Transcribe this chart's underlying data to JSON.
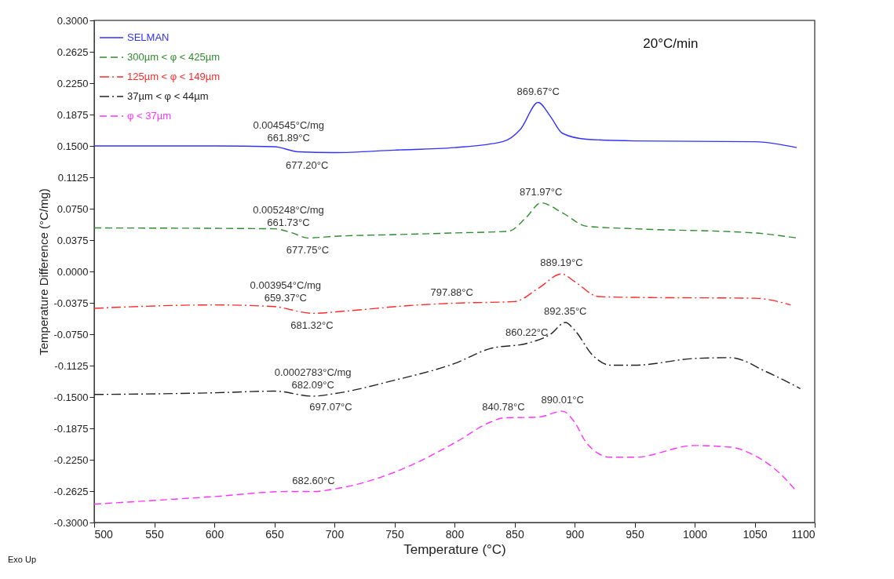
{
  "chart_data": {
    "type": "line",
    "xlabel": "Temperature (°C)",
    "ylabel": "Temperature Difference (°C/mg)",
    "xlim": [
      500,
      1100
    ],
    "ylim": [
      -0.3,
      0.3
    ],
    "xticks": [
      500,
      550,
      600,
      650,
      700,
      750,
      800,
      850,
      900,
      950,
      1000,
      1050,
      1100
    ],
    "yticks": [
      {
        "value": -0.3,
        "label": "-0.3000"
      },
      {
        "value": -0.2625,
        "label": "-0.2625"
      },
      {
        "value": -0.225,
        "label": "-0.2250"
      },
      {
        "value": -0.1875,
        "label": "-0.1875"
      },
      {
        "value": -0.15,
        "label": "-0.1500"
      },
      {
        "value": -0.1125,
        "label": "-0.1125"
      },
      {
        "value": -0.075,
        "label": "-0.0750"
      },
      {
        "value": -0.0375,
        "label": "-0.0375"
      },
      {
        "value": 0,
        "label": "0.0000"
      },
      {
        "value": 0.0375,
        "label": "0.0375"
      },
      {
        "value": 0.075,
        "label": "0.0750"
      },
      {
        "value": 0.1125,
        "label": "0.1125"
      },
      {
        "value": 0.15,
        "label": "0.1500"
      },
      {
        "value": 0.1875,
        "label": "0.1875"
      },
      {
        "value": 0.225,
        "label": "0.2250"
      },
      {
        "value": 0.2625,
        "label": "0.2625"
      },
      {
        "value": 0.3,
        "label": "0.3000"
      }
    ],
    "grid": false,
    "legend": "top left",
    "series": [
      {
        "name": "SELMAN",
        "color": "#3333ff",
        "line_style": "solid",
        "x": [
          500,
          600,
          650,
          670,
          700,
          750,
          800,
          840,
          855,
          869.67,
          880,
          890,
          910,
          950,
          1050,
          1070,
          1085
        ],
        "values": [
          0.15,
          0.15,
          0.149,
          0.143,
          0.142,
          0.145,
          0.148,
          0.155,
          0.17,
          0.202,
          0.185,
          0.165,
          0.158,
          0.156,
          0.155,
          0.152,
          0.148
        ]
      },
      {
        "name": "300µm < φ < 425µm",
        "color": "#2e8b2e",
        "line_style": "dashed",
        "x": [
          500,
          650,
          665,
          677.75,
          700,
          750,
          800,
          845,
          860,
          871.97,
          890,
          910,
          950,
          1050,
          1085
        ],
        "values": [
          0.052,
          0.051,
          0.046,
          0.04,
          0.042,
          0.044,
          0.046,
          0.048,
          0.065,
          0.082,
          0.07,
          0.054,
          0.051,
          0.046,
          0.04
        ]
      },
      {
        "name": "125µm < φ < 149µm",
        "color": "#ff2a2a",
        "line_style": "dashdot",
        "x": [
          500,
          600,
          650,
          681.32,
          712,
          760,
          797.88,
          850,
          870,
          889.19,
          900,
          920,
          950,
          1050,
          1080
        ],
        "values": [
          -0.044,
          -0.04,
          -0.042,
          -0.05,
          -0.047,
          -0.041,
          -0.038,
          -0.036,
          -0.02,
          -0.003,
          -0.012,
          -0.03,
          -0.031,
          -0.032,
          -0.04
        ]
      },
      {
        "name": "37µm < φ < 44µm",
        "color": "#222222",
        "line_style": "dashdot",
        "x": [
          500,
          600,
          650,
          682.09,
          700,
          750,
          800,
          830,
          860.22,
          880,
          892.35,
          900,
          915,
          930,
          950,
          1000,
          1030,
          1060,
          1088
        ],
        "values": [
          -0.147,
          -0.145,
          -0.143,
          -0.149,
          -0.146,
          -0.13,
          -0.11,
          -0.092,
          -0.086,
          -0.075,
          -0.061,
          -0.07,
          -0.1,
          -0.112,
          -0.112,
          -0.104,
          -0.103,
          -0.12,
          -0.14
        ]
      },
      {
        "name": "φ < 37µm",
        "color": "#ff33ff",
        "line_style": "dashed",
        "x": [
          500,
          600,
          660,
          682.6,
          700,
          750,
          800,
          830,
          840.78,
          870,
          890.01,
          900,
          910,
          930,
          950,
          1000,
          1030,
          1050,
          1070,
          1085
        ],
        "values": [
          -0.278,
          -0.269,
          -0.263,
          -0.263,
          -0.26,
          -0.24,
          -0.205,
          -0.18,
          -0.175,
          -0.174,
          -0.167,
          -0.18,
          -0.205,
          -0.222,
          -0.222,
          -0.208,
          -0.21,
          -0.22,
          -0.24,
          -0.263
        ]
      }
    ],
    "annotations": [
      "20°C/min",
      "Exo Up",
      {
        "text": "869.67°C",
        "x": 869.67,
        "y": 0.202
      },
      {
        "text": "661.89°C",
        "x": 661.89,
        "y": 0.146
      },
      {
        "text": "677.20°C",
        "x": 677.2,
        "y": 0.142
      },
      {
        "text": "0.004545°C/mg",
        "x": 661.89,
        "y": 0.146
      },
      {
        "text": "871.97°C",
        "x": 871.97,
        "y": 0.082
      },
      {
        "text": "661.73°C",
        "x": 661.73,
        "y": 0.045
      },
      {
        "text": "677.75°C",
        "x": 677.75,
        "y": 0.04
      },
      {
        "text": "0.005248°C/mg",
        "x": 661.73,
        "y": 0.045
      },
      {
        "text": "889.19°C",
        "x": 889.19,
        "y": -0.003
      },
      {
        "text": "797.88°C",
        "x": 797.88,
        "y": -0.038
      },
      {
        "text": "659.37°C",
        "x": 659.37,
        "y": -0.045
      },
      {
        "text": "681.32°C",
        "x": 681.32,
        "y": -0.05
      },
      {
        "text": "0.003954°C/mg",
        "x": 659.37,
        "y": -0.045
      },
      {
        "text": "892.35°C",
        "x": 892.35,
        "y": -0.061
      },
      {
        "text": "860.22°C",
        "x": 860.22,
        "y": -0.086
      },
      {
        "text": "682.09°C",
        "x": 682.09,
        "y": -0.149
      },
      {
        "text": "697.07°C",
        "x": 697.07,
        "y": -0.147
      },
      {
        "text": "0.0002783°C/mg",
        "x": 682.09,
        "y": -0.149
      },
      {
        "text": "840.78°C",
        "x": 840.78,
        "y": -0.175
      },
      {
        "text": "890.01°C",
        "x": 890.01,
        "y": -0.167
      },
      {
        "text": "682.60°C",
        "x": 682.6,
        "y": -0.263
      }
    ]
  }
}
